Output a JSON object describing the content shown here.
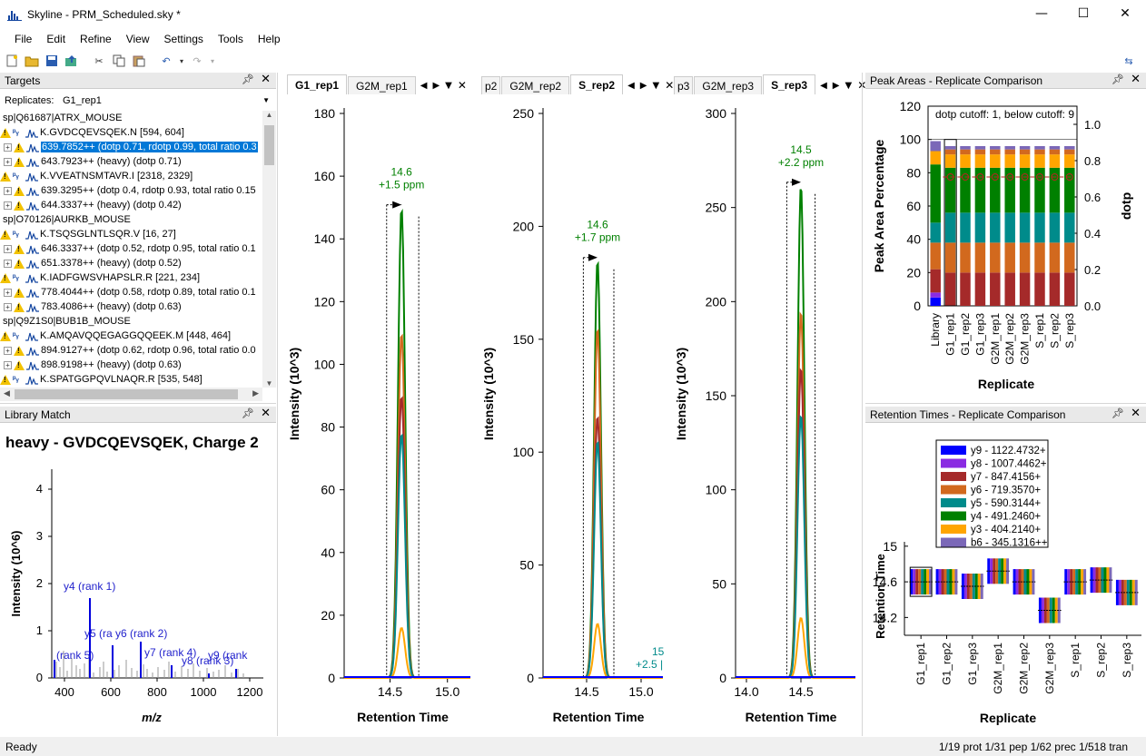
{
  "window": {
    "title": "Skyline - PRM_Scheduled.sky *",
    "minimize": "—",
    "maximize": "☐",
    "close": "✕"
  },
  "menu": [
    "File",
    "Edit",
    "Refine",
    "View",
    "Settings",
    "Tools",
    "Help"
  ],
  "targets": {
    "title": "Targets",
    "replicates_label": "Replicates:",
    "replicates_value": "G1_rep1",
    "rows": [
      {
        "type": "protein",
        "text": "sp|Q61687|ATRX_MOUSE"
      },
      {
        "type": "peptide",
        "text": "K.GVDCQEVSQEK.N [594, 604]"
      },
      {
        "type": "precursor",
        "text": "639.7852++ (dotp 0.71, rdotp 0.99, total ratio 0.3",
        "selected": true
      },
      {
        "type": "precursor",
        "text": "643.7923++ (heavy) (dotp 0.71)"
      },
      {
        "type": "peptide",
        "text": "K.VVEATNSMTAVR.I [2318, 2329]"
      },
      {
        "type": "precursor",
        "text": "639.3295++ (dotp 0.4, rdotp 0.93, total ratio 0.15"
      },
      {
        "type": "precursor",
        "text": "644.3337++ (heavy) (dotp 0.42)"
      },
      {
        "type": "protein",
        "text": "sp|O70126|AURKB_MOUSE"
      },
      {
        "type": "peptide",
        "text": "K.TSQSGLNTLSQR.V [16, 27]"
      },
      {
        "type": "precursor",
        "text": "646.3337++ (dotp 0.52, rdotp 0.95, total ratio 0.1"
      },
      {
        "type": "precursor",
        "text": "651.3378++ (heavy) (dotp 0.52)"
      },
      {
        "type": "peptide",
        "text": "K.IADFGWSVHAPSLR.R [221, 234]"
      },
      {
        "type": "precursor",
        "text": "778.4044++ (dotp 0.58, rdotp 0.89, total ratio 0.1"
      },
      {
        "type": "precursor",
        "text": "783.4086++ (heavy) (dotp 0.63)"
      },
      {
        "type": "protein",
        "text": "sp|Q9Z1S0|BUB1B_MOUSE"
      },
      {
        "type": "peptide",
        "text": "K.AMQAVQQEGAGGQQEEK.M [448, 464]"
      },
      {
        "type": "precursor",
        "text": "894.9127++ (dotp 0.62, rdotp 0.96, total ratio 0.0"
      },
      {
        "type": "precursor",
        "text": "898.9198++ (heavy) (dotp 0.63)"
      },
      {
        "type": "peptide",
        "text": "K.SPATGGPQVLNAQR.R [535, 548]"
      }
    ]
  },
  "library_match": {
    "title": "Library Match",
    "heading": "heavy - GVDCQEVSQEK, Charge 2",
    "ylabel": "Intensity (10^6)",
    "xlabel": "m/z",
    "yticks": [
      "0",
      "1",
      "2",
      "3",
      "4"
    ],
    "xticks": [
      "400",
      "600",
      "800",
      "1000",
      "1200"
    ],
    "labels": [
      "y4 (rank 1)",
      "y5 (ra",
      "y6 (rank 2)",
      "(rank 5)",
      "y7 (rank 4)",
      "y8 (rank 3)",
      "y9 (rank"
    ]
  },
  "chrom_panels": [
    {
      "tabs": [
        "G1_rep1",
        "G2M_rep1"
      ],
      "active": 0,
      "ylabel": "Intensity (10^3)",
      "xlabel": "Retention Time",
      "yticks": [
        "0",
        "20",
        "40",
        "60",
        "80",
        "100",
        "120",
        "140",
        "160",
        "180"
      ],
      "xticks": [
        "14.5",
        "15.0"
      ],
      "peak_label": "14.6",
      "ppm_label": "+1.5 ppm"
    },
    {
      "tabs": [
        "p2",
        "G2M_rep2",
        "S_rep2"
      ],
      "active": 2,
      "ylabel": "Intensity (10^3)",
      "xlabel": "Retention Time",
      "yticks": [
        "0",
        "50",
        "100",
        "150",
        "200",
        "250"
      ],
      "xticks": [
        "14.5",
        "15.0"
      ],
      "peak_label": "14.6",
      "ppm_label": "+1.7 ppm",
      "extra_label": "15",
      "extra_ppm": "+2.5 |"
    },
    {
      "tabs": [
        "p3",
        "G2M_rep3",
        "S_rep3"
      ],
      "active": 2,
      "ylabel": "Intensity (10^3)",
      "xlabel": "Retention Time",
      "yticks": [
        "0",
        "50",
        "100",
        "150",
        "200",
        "250",
        "300"
      ],
      "xticks": [
        "14.0",
        "14.5"
      ],
      "peak_label": "14.5",
      "ppm_label": "+2.2 ppm"
    }
  ],
  "peak_areas": {
    "title": "Peak Areas - Replicate Comparison",
    "ylabel": "Peak Area Percentage",
    "y2label": "dotp",
    "xlabel": "Replicate",
    "cutoff_note": "dotp cutoff: 1, below cutoff: 9",
    "yticks": [
      "0",
      "20",
      "40",
      "60",
      "80",
      "100",
      "120"
    ],
    "y2ticks": [
      "0.0",
      "0.2",
      "0.4",
      "0.6",
      "0.8",
      "1.0"
    ],
    "categories": [
      "Library",
      "G1_rep1",
      "G1_rep2",
      "G1_rep3",
      "G2M_rep1",
      "G2M_rep2",
      "G2M_rep3",
      "S_rep1",
      "S_rep2",
      "S_rep3"
    ]
  },
  "retention_times": {
    "title": "Retention Times - Replicate Comparison",
    "ylabel": "Retention Time",
    "xlabel": "Replicate",
    "yticks": [
      "14.2",
      "14.6",
      "15"
    ],
    "categories": [
      "G1_rep1",
      "G1_rep2",
      "G1_rep3",
      "G2M_rep1",
      "G2M_rep2",
      "G2M_rep3",
      "S_rep1",
      "S_rep2",
      "S_rep3"
    ],
    "legend": [
      {
        "label": "y9 - 1122.4732+",
        "color": "#0000ff"
      },
      {
        "label": "y8 - 1007.4462+",
        "color": "#8a2be2"
      },
      {
        "label": "y7 - 847.4156+",
        "color": "#a52a2a"
      },
      {
        "label": "y6 - 719.3570+",
        "color": "#d2691e"
      },
      {
        "label": "y5 - 590.3144+",
        "color": "#008b8b"
      },
      {
        "label": "y4 - 491.2460+",
        "color": "#008000"
      },
      {
        "label": "y3 - 404.2140+",
        "color": "#ffa500"
      },
      {
        "label": "b6 - 345.1316++",
        "color": "#7b68b8"
      }
    ]
  },
  "status": {
    "left": "Ready",
    "right": "1/19 prot   1/31 pep   1/62 prec   1/518 tran"
  }
}
